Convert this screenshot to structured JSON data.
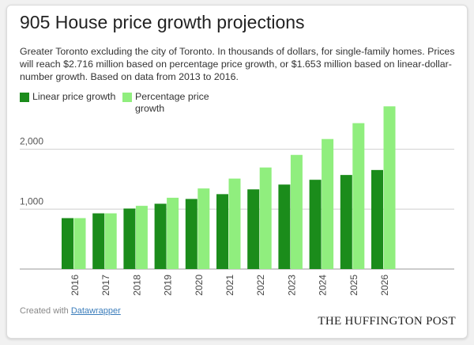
{
  "header": {
    "title": "905 House price growth projections",
    "subtitle": "Greater Toronto excluding the city of Toronto. In thousands of dollars, for single-family homes. Prices will reach $2.716 million based on percentage price growth, or $1.653 million based on linear-dollar-number growth. Based on data from 2013 to 2016."
  },
  "chart_data": {
    "type": "bar",
    "title": "905 House price growth projections",
    "xlabel": "",
    "ylabel": "",
    "ylim": [
      0,
      2800
    ],
    "yticks": [
      1000,
      2000
    ],
    "ytick_labels": [
      "1,000",
      "2,000"
    ],
    "grid": true,
    "legend_position": "top-left",
    "categories": [
      "2016",
      "2017",
      "2018",
      "2019",
      "2020",
      "2021",
      "2022",
      "2023",
      "2024",
      "2025",
      "2026"
    ],
    "series": [
      {
        "name": "Linear price growth",
        "color": "#1b8c1b",
        "values": [
          850,
          930,
          1010,
          1090,
          1170,
          1250,
          1330,
          1410,
          1490,
          1570,
          1653
        ]
      },
      {
        "name": "Percentage price growth",
        "color": "#90ee7e",
        "values": [
          850,
          930,
          1055,
          1190,
          1345,
          1510,
          1695,
          1905,
          2170,
          2435,
          2716
        ]
      }
    ]
  },
  "legend": {
    "items": [
      {
        "label": "Linear price growth",
        "color": "#1b8c1b"
      },
      {
        "label": "Percentage price growth",
        "color": "#90ee7e"
      }
    ]
  },
  "footer": {
    "credit_prefix": "Created with ",
    "credit_link": "Datawrapper",
    "publisher": "THE HUFFINGTON POST"
  }
}
